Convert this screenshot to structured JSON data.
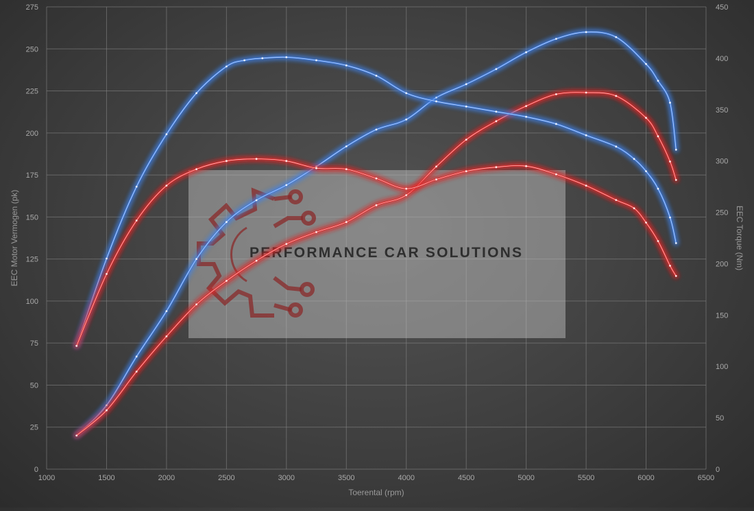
{
  "chart_data": {
    "type": "line",
    "xlabel": "Toerental (rpm)",
    "ylabel_left": "EEC Motor Vermogen (pk)",
    "ylabel_right": "EEC Torque (Nm)",
    "xlim": [
      1000,
      6500
    ],
    "ylim_left": [
      0,
      275
    ],
    "ylim_right": [
      0,
      450
    ],
    "x_ticks": [
      1000,
      1500,
      2000,
      2500,
      3000,
      3500,
      4000,
      4500,
      5000,
      5500,
      6000,
      6500
    ],
    "y_ticks_left": [
      0,
      25,
      50,
      75,
      100,
      125,
      150,
      175,
      200,
      225,
      250,
      275
    ],
    "y_ticks_right": [
      0,
      50,
      100,
      150,
      200,
      250,
      300,
      350,
      400,
      450
    ],
    "grid": true,
    "colors": {
      "tuned": "#3f7fe6",
      "stock": "#e22a2a"
    },
    "series": [
      {
        "id": "tuned_power",
        "axis": "left",
        "color_key": "tuned",
        "x": [
          1250,
          1500,
          1750,
          2000,
          2250,
          2500,
          2750,
          3000,
          3250,
          3500,
          3750,
          4000,
          4250,
          4500,
          4750,
          5000,
          5250,
          5500,
          5750,
          6000,
          6100,
          6200,
          6250
        ],
        "y": [
          20,
          38,
          67,
          94,
          125,
          147,
          160,
          169,
          180,
          192,
          202,
          208,
          221,
          229,
          238,
          248,
          256,
          260,
          257,
          241,
          231,
          218,
          190
        ]
      },
      {
        "id": "stock_power",
        "axis": "left",
        "color_key": "stock",
        "x": [
          1250,
          1500,
          1750,
          2000,
          2250,
          2500,
          2750,
          3000,
          3250,
          3500,
          3750,
          4000,
          4250,
          4500,
          4750,
          5000,
          5250,
          5500,
          5750,
          6000,
          6100,
          6200,
          6250
        ],
        "y": [
          20,
          35,
          58,
          79,
          98,
          112,
          124,
          134,
          141,
          147,
          157,
          163,
          180,
          196,
          207,
          216,
          223,
          224,
          222,
          209,
          198,
          183,
          172
        ]
      },
      {
        "id": "tuned_torque",
        "axis": "right",
        "color_key": "tuned",
        "x": [
          1250,
          1500,
          1750,
          2000,
          2250,
          2500,
          2650,
          2800,
          3000,
          3250,
          3500,
          3750,
          4000,
          4250,
          4500,
          4750,
          5000,
          5250,
          5500,
          5750,
          5900,
          6000,
          6100,
          6200,
          6250
        ],
        "y": [
          120,
          205,
          275,
          326,
          366,
          392,
          398,
          400,
          401,
          398,
          393,
          383,
          366,
          358,
          353,
          348,
          343,
          336,
          325,
          314,
          302,
          290,
          273,
          245,
          220
        ]
      },
      {
        "id": "stock_torque",
        "axis": "right",
        "color_key": "stock",
        "x": [
          1250,
          1500,
          1750,
          2000,
          2250,
          2500,
          2750,
          3000,
          3250,
          3500,
          3750,
          4000,
          4250,
          4500,
          4750,
          5000,
          5250,
          5500,
          5750,
          5900,
          6000,
          6100,
          6200,
          6250
        ],
        "y": [
          120,
          190,
          242,
          276,
          292,
          300,
          302,
          300,
          293,
          292,
          283,
          273,
          282,
          290,
          294,
          295,
          287,
          276,
          262,
          254,
          240,
          222,
          198,
          188
        ]
      }
    ]
  },
  "watermark": {
    "text": "PERFORMANCE CAR SOLUTIONS",
    "icon": "gear-circuit-logo-icon"
  }
}
